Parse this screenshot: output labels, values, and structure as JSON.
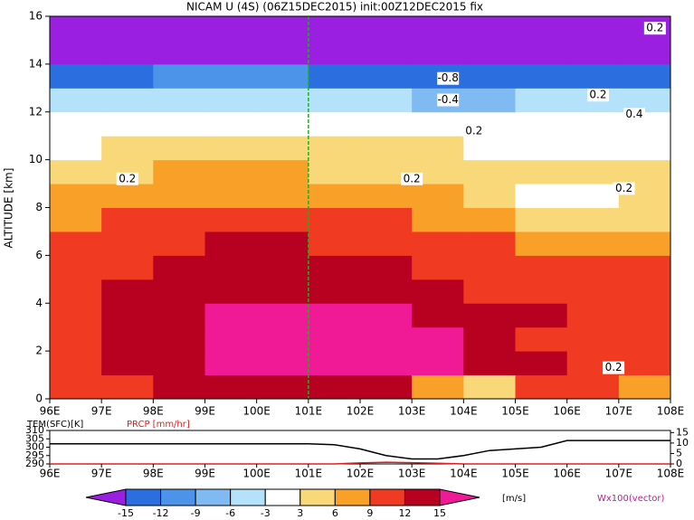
{
  "chart_data": {
    "type": "heatmap",
    "title": "NICAM U (4S) (06Z15DEC2015) init:00Z12DEC2015 fix",
    "y_label": "ALTITUDE [km]",
    "xlim": [
      96,
      108
    ],
    "xticks": [
      {
        "value": 96,
        "label": "96E"
      },
      {
        "value": 97,
        "label": "97E"
      },
      {
        "value": 98,
        "label": "98E"
      },
      {
        "value": 99,
        "label": "99E"
      },
      {
        "value": 100,
        "label": "100E"
      },
      {
        "value": 101,
        "label": "101E"
      },
      {
        "value": 102,
        "label": "102E"
      },
      {
        "value": 103,
        "label": "103E"
      },
      {
        "value": 104,
        "label": "104E"
      },
      {
        "value": 105,
        "label": "105E"
      },
      {
        "value": 106,
        "label": "106E"
      },
      {
        "value": 107,
        "label": "107E"
      },
      {
        "value": 108,
        "label": "108E"
      }
    ],
    "ylim": [
      0,
      16
    ],
    "yticks": [
      0,
      2,
      4,
      6,
      8,
      10,
      12,
      14,
      16
    ],
    "x_edges": [
      96,
      97,
      98,
      99,
      100,
      101,
      102,
      103,
      104,
      105,
      106,
      107,
      108
    ],
    "y_edges": [
      0,
      1,
      2,
      3,
      4,
      5,
      6,
      7,
      8,
      9,
      10,
      11,
      12,
      13,
      14,
      15,
      16
    ],
    "field": [
      [
        9,
        11,
        12,
        13,
        13,
        13,
        12,
        8,
        5,
        9,
        10,
        8
      ],
      [
        11,
        13,
        14,
        16,
        16,
        16,
        16,
        16,
        14,
        12,
        11,
        10
      ],
      [
        11,
        13,
        14,
        16,
        17,
        17,
        16,
        16,
        13,
        11,
        11,
        10
      ],
      [
        10,
        13,
        14,
        15,
        15,
        16,
        15,
        14,
        12,
        12,
        10,
        9
      ],
      [
        10,
        13,
        13,
        13,
        13,
        13,
        12,
        12,
        11,
        10,
        10,
        9
      ],
      [
        10,
        11,
        12,
        12,
        13,
        13,
        12,
        11,
        11,
        10,
        9,
        9
      ],
      [
        9,
        10,
        11,
        12,
        12,
        11,
        11,
        10,
        9,
        8,
        8,
        8
      ],
      [
        7,
        9,
        10,
        11,
        11,
        10,
        9,
        8,
        6,
        5,
        4,
        5
      ],
      [
        6,
        7,
        8,
        8,
        8,
        8,
        7,
        6,
        3,
        2,
        2,
        3
      ],
      [
        4,
        5,
        6,
        6,
        6,
        5,
        5,
        4,
        4,
        3,
        3,
        4
      ],
      [
        2,
        3,
        4,
        4,
        5,
        4,
        4,
        3,
        2,
        2,
        2,
        2
      ],
      [
        -1,
        -2,
        -1,
        1,
        1,
        1,
        0,
        -2,
        -2,
        -3,
        -1,
        -2
      ],
      [
        -5,
        -6,
        -5,
        -4,
        -4,
        -5,
        -6,
        -7,
        -7,
        -6,
        -6,
        -5
      ],
      [
        -13,
        -13,
        -12,
        -11,
        -12,
        -13,
        -13,
        -14,
        -14,
        -13,
        -13,
        -13
      ],
      [
        -16,
        -16,
        -16,
        -16,
        -16,
        -16,
        -17,
        -17,
        -17,
        -16,
        -16,
        -17
      ],
      [
        -18,
        -18,
        -18,
        -18,
        -18,
        -18,
        -18,
        -18,
        -18,
        -18,
        -18,
        -18
      ]
    ],
    "levels": [
      -15,
      -12,
      -9,
      -6,
      -3,
      3,
      6,
      9,
      12,
      15
    ],
    "colors": [
      "#9a1fe0",
      "#2a6ee0",
      "#4c93ea",
      "#80baf2",
      "#b4e2fa",
      "#ffffff",
      "#f8d878",
      "#f8a028",
      "#f03a22",
      "#b80020",
      "#f01a96"
    ],
    "colorbar_unit": "[m/s]",
    "vector_label": "Wx100(vector)",
    "annotations": [
      "0.2",
      "0.2",
      "-0.8",
      "-0.4",
      "0.2",
      "0.2",
      "0.4",
      "0.2",
      "0.2",
      "0.2"
    ],
    "sub": {
      "type": "line",
      "y_label": "TEM(SFC)[K]",
      "y2_label": "PRCP [mm/hr]",
      "ylim": [
        290,
        310
      ],
      "yticks": [
        290,
        295,
        300,
        305,
        310
      ],
      "y2lim": [
        0,
        16
      ],
      "y2ticks": [
        0,
        5,
        10,
        15
      ],
      "x": [
        96,
        97,
        98,
        99,
        100,
        101,
        101.5,
        102,
        102.5,
        103,
        103.5,
        104,
        104.5,
        105,
        105.5,
        106,
        107,
        108
      ],
      "series": [
        {
          "name": "TEM(SFC)[K]",
          "color": "#000000",
          "values": [
            302,
            302,
            302,
            302,
            302,
            302,
            301.5,
            299,
            295,
            293,
            293,
            295,
            298,
            299,
            300,
            304,
            304,
            304
          ]
        },
        {
          "name": "PRCP [mm/hr]",
          "color": "#e02020",
          "axis": "y2",
          "values": [
            0,
            0,
            0,
            0,
            0,
            0,
            0,
            0.5,
            0.8,
            0.6,
            0.3,
            0,
            0,
            0,
            0,
            0,
            0,
            0
          ]
        }
      ]
    }
  }
}
